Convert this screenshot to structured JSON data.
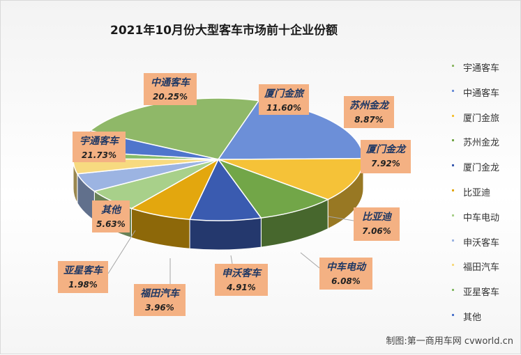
{
  "chart_data": {
    "type": "pie",
    "title": "2021年10月份大型客车市场前十企业份额",
    "unit": "%",
    "slices": [
      {
        "name": "宇通客车",
        "value": 21.73,
        "label": "21.73%",
        "color": "#8fb868"
      },
      {
        "name": "中通客车",
        "value": 20.25,
        "label": "20.25%",
        "color": "#6c8fd8"
      },
      {
        "name": "厦门金旅",
        "value": 11.6,
        "label": "11.60%",
        "color": "#f5c238"
      },
      {
        "name": "苏州金龙",
        "value": 8.87,
        "label": "8.87%",
        "color": "#72a648"
      },
      {
        "name": "厦门金龙",
        "value": 7.92,
        "label": "7.92%",
        "color": "#3a5bb0"
      },
      {
        "name": "比亚迪",
        "value": 7.06,
        "label": "7.06%",
        "color": "#e3a70e"
      },
      {
        "name": "中车电动",
        "value": 6.08,
        "label": "6.08%",
        "color": "#a8d08a"
      },
      {
        "name": "申沃客车",
        "value": 4.91,
        "label": "4.91%",
        "color": "#9cb4e2"
      },
      {
        "name": "福田汽车",
        "value": 3.96,
        "label": "3.96%",
        "color": "#f7da80"
      },
      {
        "name": "亚星客车",
        "value": 1.98,
        "label": "1.98%",
        "color": "#86bb68"
      },
      {
        "name": "其他",
        "value": 5.63,
        "label": "5.63%",
        "color": "#4f75cc"
      }
    ],
    "legend_position": "right"
  },
  "watermark": "制图:第一商用车网 cvworld.cn"
}
